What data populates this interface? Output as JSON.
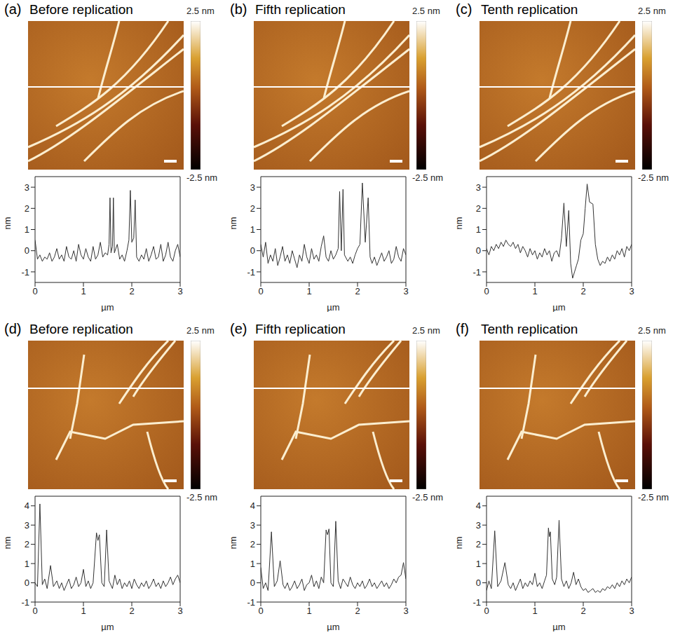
{
  "chart_data": [
    {
      "type": "line",
      "panel_label": "(a)",
      "title": "Before replication",
      "x_label": "µm",
      "y_label": "nm",
      "color": "#333333",
      "x": [
        0,
        0.05,
        0.1,
        0.15,
        0.2,
        0.25,
        0.3,
        0.35,
        0.4,
        0.45,
        0.5,
        0.55,
        0.6,
        0.65,
        0.7,
        0.75,
        0.8,
        0.85,
        0.9,
        0.95,
        1.0,
        1.05,
        1.1,
        1.15,
        1.2,
        1.25,
        1.3,
        1.35,
        1.4,
        1.45,
        1.5,
        1.53,
        1.55,
        1.57,
        1.6,
        1.62,
        1.64,
        1.7,
        1.75,
        1.8,
        1.85,
        1.9,
        1.94,
        1.97,
        2.0,
        2.04,
        2.07,
        2.1,
        2.15,
        2.2,
        2.25,
        2.3,
        2.35,
        2.4,
        2.45,
        2.5,
        2.55,
        2.6,
        2.65,
        2.7,
        2.75,
        2.8,
        2.85,
        2.9,
        2.95,
        3.0
      ],
      "values": [
        0.5,
        -0.4,
        -0.2,
        -0.5,
        -0.3,
        -0.4,
        -0.1,
        -0.5,
        -0.3,
        0.1,
        -0.4,
        -0.2,
        -0.5,
        0.2,
        -0.3,
        -0.4,
        0.0,
        -0.5,
        0.3,
        -0.2,
        -0.4,
        0.1,
        -0.3,
        -0.5,
        0.2,
        -0.4,
        -0.2,
        0.4,
        -0.3,
        -0.1,
        -0.2,
        0.3,
        2.5,
        -0.1,
        0.2,
        2.5,
        -0.1,
        0.3,
        -0.4,
        -0.2,
        -0.5,
        0.0,
        0.5,
        2.85,
        0.4,
        0.6,
        2.4,
        -0.3,
        -0.5,
        -0.2,
        -0.4,
        0.1,
        -0.5,
        -0.2,
        0.2,
        -0.4,
        -0.3,
        0.3,
        -0.5,
        -0.2,
        0.4,
        -0.3,
        -0.5,
        0.0,
        0.3,
        -0.3
      ],
      "xlim": [
        0,
        3
      ],
      "xticks": [
        0,
        1,
        2,
        3
      ],
      "ylim": [
        -1.5,
        3.5
      ],
      "yticks": [
        -1,
        0,
        1,
        2,
        3
      ],
      "colorbar_range": [
        -2.5,
        2.5
      ],
      "colorbar_ticks": [
        {
          "value": 2.5,
          "label": "2.5 nm"
        },
        {
          "value": -2.5,
          "label": "-2.5 nm"
        }
      ]
    },
    {
      "type": "line",
      "panel_label": "(b)",
      "title": "Fifth replication",
      "x_label": "µm",
      "y_label": "nm",
      "color": "#333333",
      "x": [
        0,
        0.05,
        0.1,
        0.15,
        0.2,
        0.25,
        0.3,
        0.35,
        0.4,
        0.45,
        0.5,
        0.55,
        0.6,
        0.65,
        0.7,
        0.75,
        0.8,
        0.85,
        0.9,
        0.95,
        1.0,
        1.05,
        1.1,
        1.15,
        1.2,
        1.25,
        1.3,
        1.35,
        1.4,
        1.45,
        1.5,
        1.55,
        1.6,
        1.63,
        1.665,
        1.7,
        1.73,
        1.8,
        1.85,
        1.9,
        1.95,
        2.0,
        2.05,
        2.1,
        2.16,
        2.22,
        2.26,
        2.3,
        2.35,
        2.4,
        2.45,
        2.5,
        2.55,
        2.6,
        2.65,
        2.7,
        2.75,
        2.8,
        2.85,
        2.9,
        2.95,
        3.0
      ],
      "values": [
        0.3,
        -0.3,
        0.4,
        -0.6,
        -0.2,
        -0.5,
        0.1,
        -0.7,
        -0.3,
        0.2,
        -0.5,
        -0.2,
        -0.6,
        0.0,
        -0.4,
        -0.8,
        -0.2,
        -0.5,
        0.3,
        -0.3,
        -0.6,
        0.1,
        -0.4,
        -0.2,
        -0.5,
        0.2,
        0.7,
        -0.3,
        -0.5,
        0.0,
        -0.4,
        -0.2,
        0.1,
        2.8,
        0.0,
        2.9,
        -0.2,
        -0.5,
        -0.3,
        -0.6,
        -0.2,
        0.1,
        0.3,
        3.2,
        0.4,
        2.5,
        -0.3,
        -0.6,
        -0.3,
        -0.7,
        -0.4,
        -0.1,
        -0.5,
        -0.3,
        0.0,
        -0.6,
        -0.4,
        0.2,
        -0.3,
        -0.5,
        0.1,
        -0.2
      ],
      "xlim": [
        0,
        3
      ],
      "xticks": [
        0,
        1,
        2,
        3
      ],
      "ylim": [
        -1.5,
        3.5
      ],
      "yticks": [
        -1,
        0,
        1,
        2,
        3
      ],
      "colorbar_range": [
        -2.5,
        2.5
      ],
      "colorbar_ticks": [
        {
          "value": 2.5,
          "label": "2.5 nm"
        },
        {
          "value": -2.5,
          "label": "-2.5 nm"
        }
      ]
    },
    {
      "type": "line",
      "panel_label": "(c)",
      "title": "Tenth replication",
      "x_label": "µm",
      "y_label": "nm",
      "color": "#333333",
      "x": [
        0,
        0.05,
        0.1,
        0.15,
        0.2,
        0.25,
        0.3,
        0.35,
        0.4,
        0.45,
        0.5,
        0.55,
        0.6,
        0.65,
        0.7,
        0.75,
        0.8,
        0.85,
        0.9,
        0.95,
        1.0,
        1.05,
        1.1,
        1.15,
        1.2,
        1.25,
        1.3,
        1.35,
        1.4,
        1.45,
        1.5,
        1.55,
        1.6,
        1.65,
        1.7,
        1.74,
        1.78,
        1.82,
        1.86,
        1.9,
        1.95,
        2.0,
        2.04,
        2.08,
        2.13,
        2.2,
        2.25,
        2.3,
        2.35,
        2.4,
        2.45,
        2.5,
        2.55,
        2.6,
        2.65,
        2.7,
        2.75,
        2.8,
        2.85,
        2.9,
        2.95,
        3.0
      ],
      "values": [
        0.1,
        -0.2,
        0.2,
        0.0,
        0.3,
        0.1,
        0.4,
        0.2,
        0.5,
        0.3,
        0.2,
        0.4,
        0.1,
        0.3,
        -0.1,
        0.2,
        0.0,
        -0.3,
        0.1,
        -0.2,
        0.0,
        -0.4,
        -0.1,
        -0.3,
        0.1,
        -0.2,
        0.0,
        -0.5,
        -0.1,
        0.0,
        -0.3,
        0.6,
        2.25,
        0.2,
        1.9,
        -0.6,
        -1.3,
        -1.0,
        -0.7,
        -0.4,
        0.5,
        0.8,
        2.0,
        3.15,
        2.3,
        2.2,
        0.3,
        -0.4,
        -0.7,
        -0.5,
        -0.6,
        -0.3,
        -0.5,
        -0.2,
        -0.4,
        0.0,
        -0.2,
        0.1,
        -0.3,
        0.2,
        0.0,
        0.3
      ],
      "xlim": [
        0,
        3
      ],
      "xticks": [
        0,
        1,
        2,
        3
      ],
      "ylim": [
        -1.5,
        3.5
      ],
      "yticks": [
        -1,
        0,
        1,
        2,
        3
      ],
      "colorbar_range": [
        -2.5,
        2.5
      ],
      "colorbar_ticks": [
        {
          "value": 2.5,
          "label": "2.5 nm"
        },
        {
          "value": -2.5,
          "label": "-2.5 nm"
        }
      ]
    },
    {
      "type": "line",
      "panel_label": "(d)",
      "title": "Before replication",
      "x_label": "µm",
      "y_label": "nm",
      "color": "#333333",
      "x": [
        0,
        0.05,
        0.1,
        0.15,
        0.2,
        0.25,
        0.32,
        0.38,
        0.45,
        0.5,
        0.55,
        0.6,
        0.65,
        0.7,
        0.75,
        0.8,
        0.85,
        0.9,
        0.95,
        1.0,
        1.05,
        1.1,
        1.15,
        1.2,
        1.27,
        1.3,
        1.33,
        1.38,
        1.43,
        1.48,
        1.53,
        1.6,
        1.65,
        1.7,
        1.75,
        1.8,
        1.85,
        1.9,
        1.95,
        2.0,
        2.05,
        2.1,
        2.15,
        2.2,
        2.25,
        2.3,
        2.35,
        2.4,
        2.45,
        2.5,
        2.55,
        2.6,
        2.65,
        2.7,
        2.75,
        2.8,
        2.85,
        2.9,
        2.95,
        3.0
      ],
      "values": [
        0.0,
        -0.2,
        4.1,
        -0.1,
        0.2,
        -0.3,
        0.9,
        -0.2,
        0.1,
        -0.3,
        0.0,
        -0.4,
        -0.1,
        0.2,
        -0.3,
        -0.1,
        0.3,
        -0.2,
        0.0,
        0.7,
        -0.2,
        0.1,
        -0.3,
        0.0,
        2.6,
        2.2,
        2.5,
        0.0,
        -0.2,
        2.75,
        0.1,
        -0.3,
        0.4,
        -0.1,
        0.2,
        -0.3,
        0.0,
        -0.2,
        0.1,
        -0.3,
        0.2,
        -0.1,
        -0.3,
        0.0,
        -0.2,
        0.1,
        -0.3,
        -0.1,
        0.2,
        -0.2,
        0.0,
        -0.3,
        0.1,
        -0.2,
        0.0,
        0.3,
        -0.1,
        0.2,
        0.4,
        0.0
      ],
      "xlim": [
        0,
        3
      ],
      "xticks": [
        0,
        1,
        2,
        3
      ],
      "ylim": [
        -1,
        4.5
      ],
      "yticks": [
        -1,
        0,
        1,
        2,
        3,
        4
      ],
      "colorbar_range": [
        -2.5,
        2.5
      ],
      "colorbar_ticks": [
        {
          "value": 2.5,
          "label": "2.5 nm"
        },
        {
          "value": -2.5,
          "label": "-2.5 nm"
        }
      ]
    },
    {
      "type": "line",
      "panel_label": "(e)",
      "title": "Fifth replication",
      "x_label": "µm",
      "y_label": "nm",
      "color": "#333333",
      "x": [
        0,
        0.05,
        0.1,
        0.15,
        0.22,
        0.28,
        0.34,
        0.4,
        0.46,
        0.5,
        0.55,
        0.6,
        0.65,
        0.7,
        0.75,
        0.8,
        0.85,
        0.9,
        0.95,
        1.0,
        1.05,
        1.1,
        1.15,
        1.2,
        1.25,
        1.3,
        1.35,
        1.38,
        1.41,
        1.45,
        1.5,
        1.55,
        1.6,
        1.65,
        1.7,
        1.75,
        1.8,
        1.85,
        1.9,
        1.95,
        2.0,
        2.05,
        2.1,
        2.15,
        2.2,
        2.25,
        2.3,
        2.35,
        2.4,
        2.45,
        2.5,
        2.55,
        2.6,
        2.65,
        2.7,
        2.75,
        2.8,
        2.85,
        2.9,
        2.95,
        3.0
      ],
      "values": [
        0.8,
        -0.3,
        0.0,
        -0.4,
        2.65,
        -0.2,
        0.1,
        1.15,
        -0.1,
        -0.3,
        0.0,
        -0.4,
        -0.2,
        0.1,
        -0.3,
        -0.1,
        0.2,
        -0.4,
        -0.1,
        0.0,
        0.4,
        -0.2,
        0.1,
        -0.3,
        0.3,
        0.0,
        2.75,
        2.5,
        2.8,
        0.0,
        -0.2,
        3.2,
        0.1,
        -0.3,
        0.2,
        0.0,
        -0.2,
        0.3,
        -0.1,
        -0.3,
        0.0,
        -0.2,
        0.1,
        -0.3,
        -0.1,
        0.2,
        -0.2,
        0.0,
        -0.3,
        -0.1,
        0.1,
        -0.2,
        0.0,
        -0.3,
        -0.1,
        0.2,
        0.0,
        0.3,
        0.4,
        1.05,
        0.2
      ],
      "xlim": [
        0,
        3
      ],
      "xticks": [
        0,
        1,
        2,
        3
      ],
      "ylim": [
        -1,
        4.5
      ],
      "yticks": [
        -1,
        0,
        1,
        2,
        3,
        4
      ],
      "colorbar_range": [
        -2.5,
        2.5
      ],
      "colorbar_ticks": [
        {
          "value": 2.5,
          "label": "2.5 nm"
        },
        {
          "value": -2.5,
          "label": "-2.5 nm"
        }
      ]
    },
    {
      "type": "line",
      "panel_label": "(f)",
      "title": "Tenth replication",
      "x_label": "µm",
      "y_label": "nm",
      "color": "#333333",
      "x": [
        0,
        0.05,
        0.1,
        0.17,
        0.23,
        0.3,
        0.38,
        0.45,
        0.5,
        0.55,
        0.6,
        0.65,
        0.7,
        0.75,
        0.8,
        0.85,
        0.9,
        0.95,
        1.0,
        1.05,
        1.1,
        1.15,
        1.2,
        1.24,
        1.28,
        1.3,
        1.32,
        1.36,
        1.41,
        1.45,
        1.5,
        1.55,
        1.6,
        1.65,
        1.7,
        1.75,
        1.8,
        1.85,
        1.9,
        1.95,
        2.0,
        2.05,
        2.1,
        2.15,
        2.2,
        2.25,
        2.3,
        2.35,
        2.4,
        2.45,
        2.5,
        2.55,
        2.6,
        2.65,
        2.7,
        2.75,
        2.8,
        2.85,
        2.9,
        2.95,
        3.0
      ],
      "values": [
        -0.4,
        0.1,
        -0.3,
        2.7,
        -0.2,
        0.1,
        1.05,
        -0.1,
        -0.3,
        0.0,
        -0.4,
        -0.1,
        0.2,
        -0.3,
        0.0,
        -0.2,
        0.1,
        -0.1,
        0.5,
        -0.2,
        0.0,
        -0.3,
        0.1,
        0.4,
        2.85,
        2.4,
        2.65,
        0.2,
        -0.1,
        0.3,
        3.25,
        0.2,
        -0.2,
        0.1,
        -0.3,
        0.0,
        0.55,
        -0.1,
        0.2,
        -0.2,
        -0.4,
        -0.3,
        -0.5,
        -0.4,
        -0.3,
        -0.5,
        -0.4,
        -0.5,
        -0.3,
        -0.4,
        -0.2,
        -0.3,
        -0.1,
        -0.3,
        0.0,
        -0.2,
        0.1,
        -0.1,
        0.2,
        0.0,
        0.3
      ],
      "xlim": [
        0,
        3
      ],
      "xticks": [
        0,
        1,
        2,
        3
      ],
      "ylim": [
        -1,
        4.5
      ],
      "yticks": [
        -1,
        0,
        1,
        2,
        3,
        4
      ],
      "colorbar_range": [
        -2.5,
        2.5
      ],
      "colorbar_ticks": [
        {
          "value": 2.5,
          "label": "2.5 nm"
        },
        {
          "value": -2.5,
          "label": "-2.5 nm"
        }
      ]
    }
  ]
}
